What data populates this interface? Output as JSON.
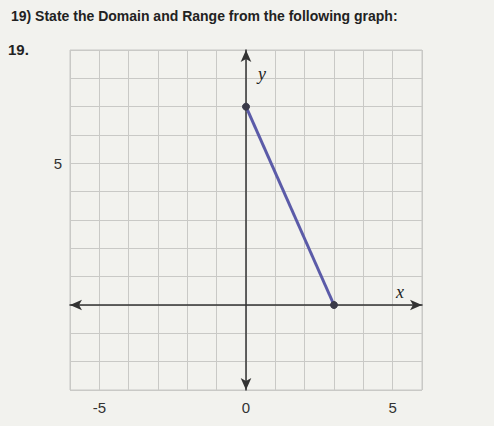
{
  "chart_data": {
    "type": "line",
    "title": "19) State the Domain and Range from the following graph:",
    "annotations": [
      "19."
    ],
    "x_label": "x",
    "y_label": "y",
    "x": [
      0,
      3
    ],
    "values": [
      7,
      0
    ],
    "color": "#5b5ba8",
    "marker": "circle",
    "xlim": [
      -6,
      6
    ],
    "ylim": [
      -3,
      9
    ],
    "xticks": [
      -5,
      0,
      5
    ],
    "yticks": [
      5
    ],
    "grid": true
  }
}
